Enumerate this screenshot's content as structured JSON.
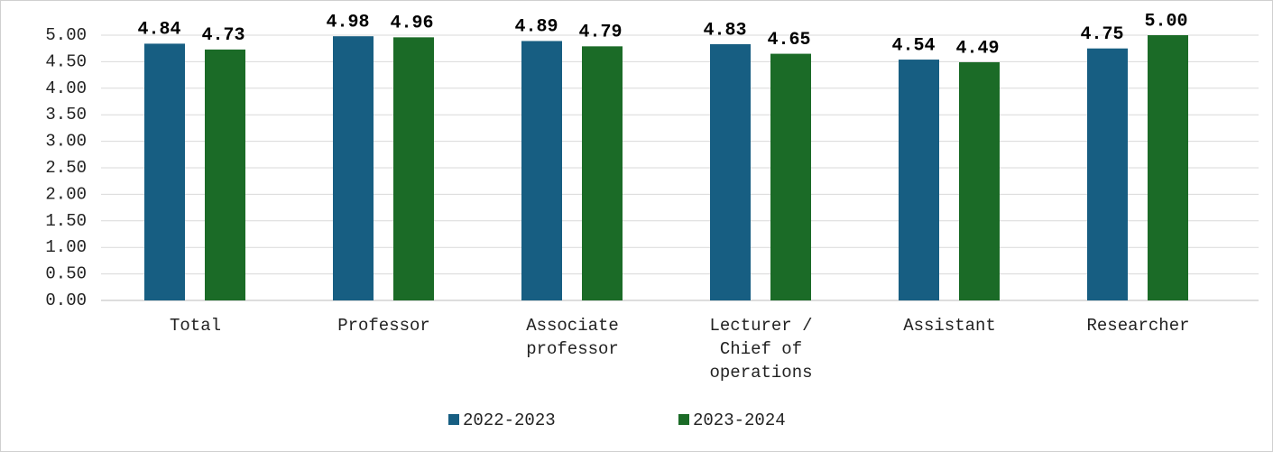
{
  "chart_data": {
    "type": "bar",
    "categories": [
      "Total",
      "Professor",
      "Associate professor",
      "Lecturer / Chief of operations",
      "Assistant",
      "Researcher"
    ],
    "series": [
      {
        "name": "2022-2023",
        "color": "#175e82",
        "values": [
          4.84,
          4.98,
          4.89,
          4.83,
          4.54,
          4.75
        ],
        "value_labels": [
          "4.84",
          "4.98",
          "4.89",
          "4.83",
          "4.54",
          "4.75"
        ]
      },
      {
        "name": "2023-2024",
        "color": "#1b6b27",
        "values": [
          4.73,
          4.96,
          4.79,
          4.65,
          4.49,
          5.0
        ],
        "value_labels": [
          "4.73",
          "4.96",
          "4.79",
          "4.65",
          "4.49",
          "5.00"
        ]
      }
    ],
    "ylim": [
      0,
      5
    ],
    "yticks": [
      {
        "value": 0,
        "label": "0.00"
      },
      {
        "value": 0.5,
        "label": "0.50"
      },
      {
        "value": 1,
        "label": "1.00"
      },
      {
        "value": 1.5,
        "label": "1.50"
      },
      {
        "value": 2,
        "label": "2.00"
      },
      {
        "value": 2.5,
        "label": "2.50"
      },
      {
        "value": 3,
        "label": "3.00"
      },
      {
        "value": 3.5,
        "label": "3.50"
      },
      {
        "value": 4,
        "label": "4.00"
      },
      {
        "value": 4.5,
        "label": "4.50"
      },
      {
        "value": 5,
        "label": "5.00"
      }
    ],
    "grid": true,
    "legend": "bottom"
  }
}
